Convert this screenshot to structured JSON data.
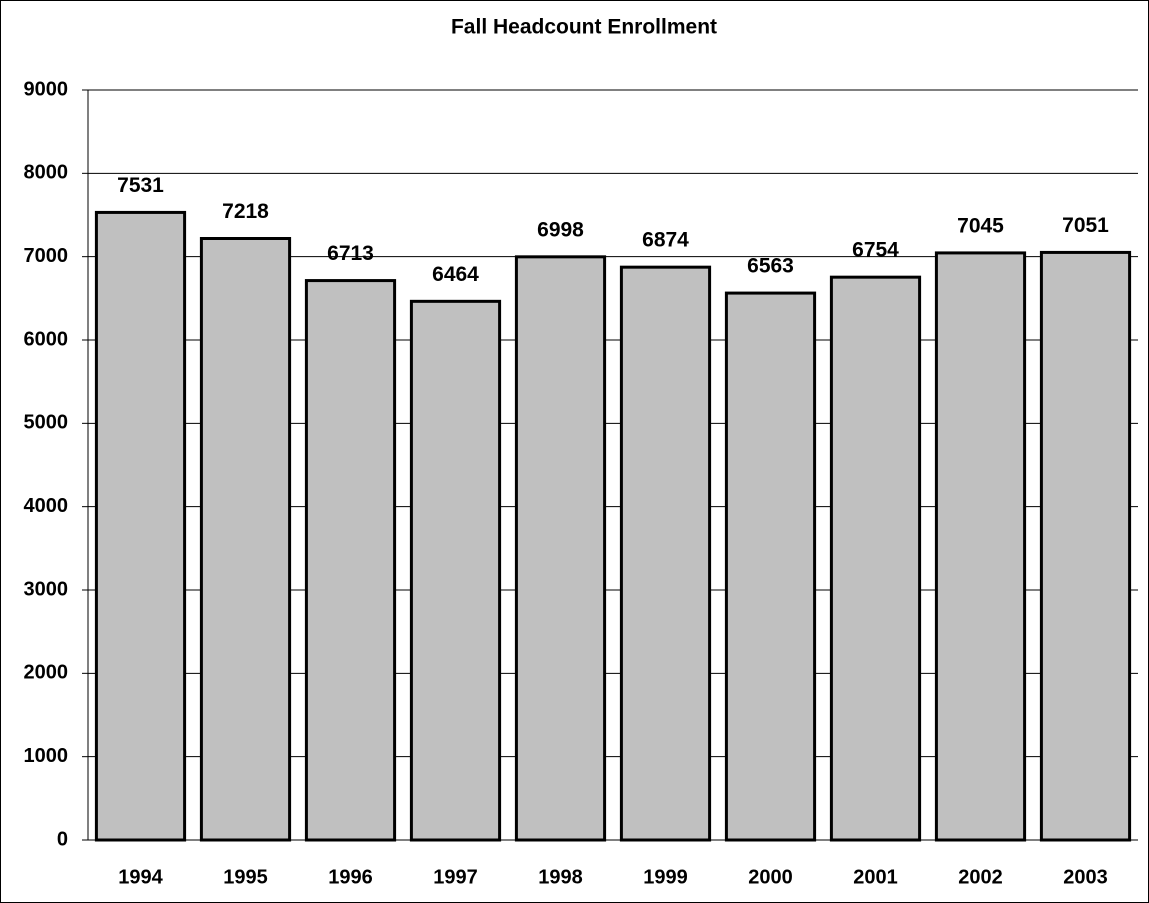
{
  "chart_data": {
    "type": "bar",
    "title": "Fall Headcount Enrollment",
    "categories": [
      "1994",
      "1995",
      "1996",
      "1997",
      "1998",
      "1999",
      "2000",
      "2001",
      "2002",
      "2003"
    ],
    "values": [
      7531,
      7218,
      6713,
      6464,
      6998,
      6874,
      6563,
      6754,
      7045,
      7051
    ],
    "color": "#c0c0c0",
    "ylim": [
      0,
      9000
    ],
    "yticks": [
      0,
      1000,
      2000,
      3000,
      4000,
      5000,
      6000,
      7000,
      8000,
      9000
    ],
    "grid": true
  }
}
